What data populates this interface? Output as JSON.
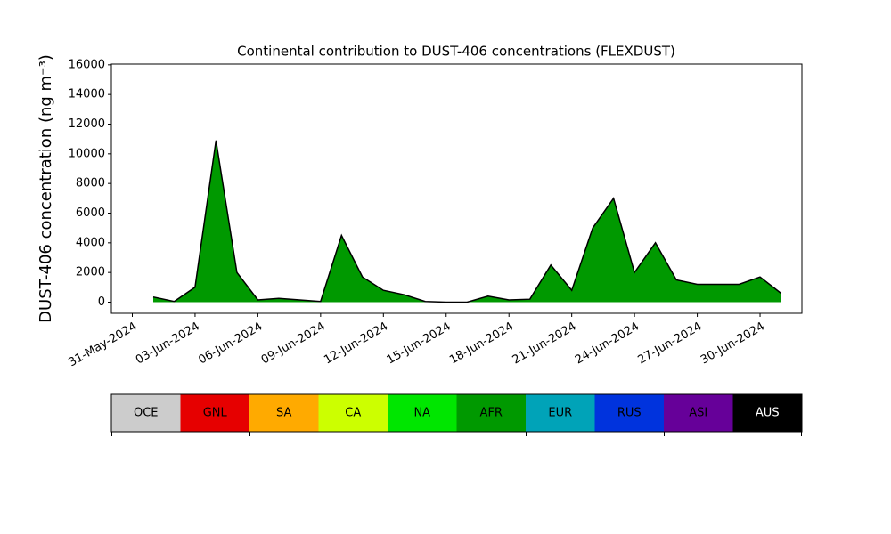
{
  "chart_data": {
    "type": "area",
    "title": "Continental contribution to DUST-406 concentrations (FLEXDUST)",
    "y_label": "DUST-406 concentration (ng m⁻³)",
    "x": [
      "01-Jun-2024",
      "02-Jun-2024",
      "03-Jun-2024",
      "04-Jun-2024",
      "05-Jun-2024",
      "06-Jun-2024",
      "07-Jun-2024",
      "08-Jun-2024",
      "09-Jun-2024",
      "10-Jun-2024",
      "11-Jun-2024",
      "12-Jun-2024",
      "13-Jun-2024",
      "14-Jun-2024",
      "15-Jun-2024",
      "16-Jun-2024",
      "17-Jun-2024",
      "18-Jun-2024",
      "19-Jun-2024",
      "20-Jun-2024",
      "21-Jun-2024",
      "22-Jun-2024",
      "23-Jun-2024",
      "24-Jun-2024",
      "25-Jun-2024",
      "26-Jun-2024",
      "27-Jun-2024",
      "28-Jun-2024",
      "29-Jun-2024",
      "30-Jun-2024",
      "01-Jul-2024"
    ],
    "series": [
      {
        "name": "AFR",
        "color": "#009900",
        "line_color": "#000000",
        "values": [
          350,
          50,
          1000,
          10900,
          2000,
          150,
          250,
          150,
          50,
          4500,
          1700,
          800,
          500,
          50,
          0,
          0,
          400,
          150,
          200,
          2500,
          800,
          5000,
          7000,
          2000,
          4000,
          1500,
          1200,
          1200,
          1200,
          1700,
          600
        ]
      }
    ],
    "xlim": [
      "30-May-2024",
      "02-Jul-2024"
    ],
    "xticks": [
      "31-May-2024",
      "03-Jun-2024",
      "06-Jun-2024",
      "09-Jun-2024",
      "12-Jun-2024",
      "15-Jun-2024",
      "18-Jun-2024",
      "21-Jun-2024",
      "24-Jun-2024",
      "27-Jun-2024",
      "30-Jun-2024"
    ],
    "ylim": [
      -750,
      16050
    ],
    "yticks": [
      0,
      2000,
      4000,
      6000,
      8000,
      10000,
      12000,
      14000,
      16000
    ],
    "colorbar": [
      {
        "name": "OCE",
        "color": "#cccccc",
        "text_color": "#000000"
      },
      {
        "name": "GNL",
        "color": "#e60000",
        "text_color": "#000000"
      },
      {
        "name": "SA",
        "color": "#ffaa00",
        "text_color": "#000000"
      },
      {
        "name": "CA",
        "color": "#ccff00",
        "text_color": "#000000"
      },
      {
        "name": "NA",
        "color": "#00e600",
        "text_color": "#000000"
      },
      {
        "name": "AFR",
        "color": "#009900",
        "text_color": "#000000"
      },
      {
        "name": "EUR",
        "color": "#00a3b8",
        "text_color": "#000000"
      },
      {
        "name": "RUS",
        "color": "#0033dd",
        "text_color": "#000000"
      },
      {
        "name": "ASI",
        "color": "#660099",
        "text_color": "#000000"
      },
      {
        "name": "AUS",
        "color": "#000000",
        "text_color": "#ffffff"
      }
    ]
  }
}
